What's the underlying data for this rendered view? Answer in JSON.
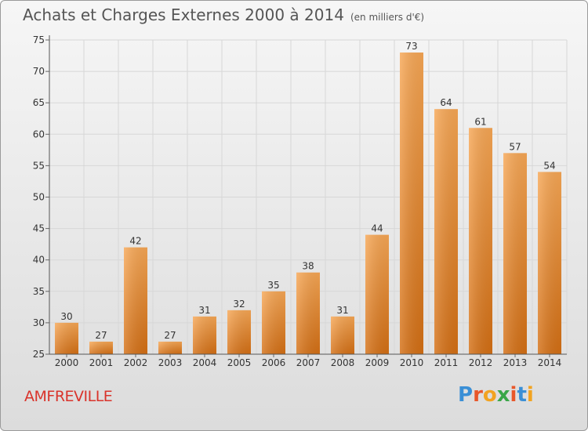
{
  "header": {
    "title": "Achats et Charges Externes 2000 à 2014",
    "unit": "(en milliers d'€)"
  },
  "footer": {
    "commune": "AMFREVILLE",
    "logo_letters": [
      "P",
      "r",
      "o",
      "x",
      "i",
      "t",
      "i"
    ]
  },
  "colors": {
    "bar_top": "#f7a755",
    "bar_bottom": "#d46f14",
    "commune": "#d9332b",
    "grid": "#d7d7d7"
  },
  "chart_data": {
    "type": "bar",
    "title": "Achats et Charges Externes 2000 à 2014",
    "subtitle": "(en milliers d'€)",
    "xlabel": "",
    "ylabel": "",
    "categories": [
      "2000",
      "2001",
      "2002",
      "2003",
      "2004",
      "2005",
      "2006",
      "2007",
      "2008",
      "2009",
      "2010",
      "2011",
      "2012",
      "2013",
      "2014"
    ],
    "values": [
      30,
      27,
      42,
      27,
      31,
      32,
      35,
      38,
      31,
      44,
      73,
      64,
      61,
      57,
      54
    ],
    "ylim": [
      25,
      75
    ],
    "yticks": [
      25,
      30,
      35,
      40,
      45,
      50,
      55,
      60,
      65,
      70,
      75
    ],
    "grid": true,
    "legend": "none"
  }
}
